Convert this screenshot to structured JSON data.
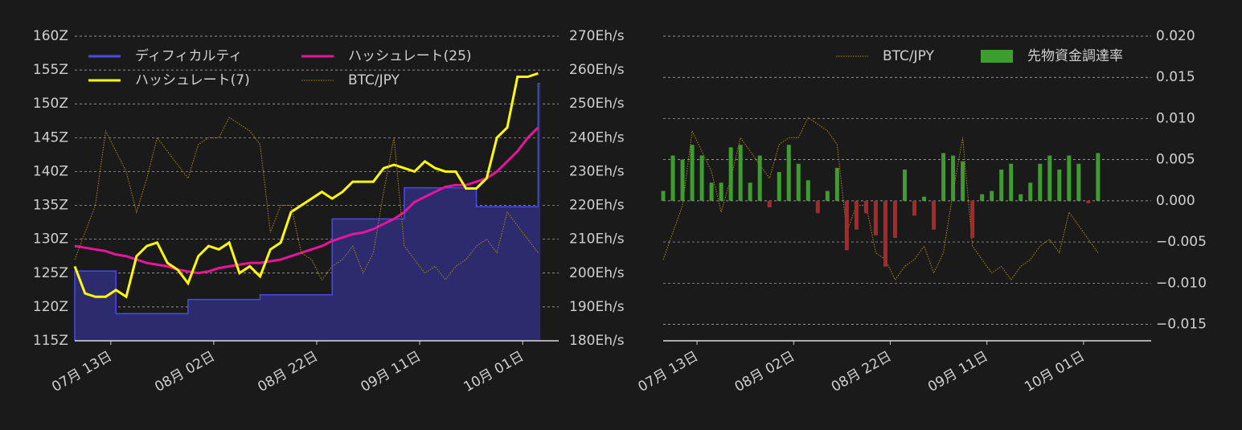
{
  "chart_data": [
    {
      "type": "line",
      "x": [
        "07-06",
        "07-08",
        "07-10",
        "07-12",
        "07-14",
        "07-16",
        "07-18",
        "07-20",
        "07-22",
        "07-24",
        "07-26",
        "07-28",
        "07-30",
        "08-01",
        "08-03",
        "08-05",
        "08-07",
        "08-09",
        "08-11",
        "08-13",
        "08-15",
        "08-17",
        "08-19",
        "08-21",
        "08-23",
        "08-25",
        "08-27",
        "08-29",
        "08-31",
        "09-02",
        "09-04",
        "09-06",
        "09-08",
        "09-10",
        "09-12",
        "09-14",
        "09-16",
        "09-18",
        "09-20",
        "09-22",
        "09-24",
        "09-26",
        "09-28",
        "09-30",
        "10-02",
        "10-04"
      ],
      "xlim": [
        "07-06",
        "10-08"
      ],
      "xticks": [
        {
          "value": "07-13",
          "label": "07月 13日"
        },
        {
          "value": "08-02",
          "label": "08月 02日"
        },
        {
          "value": "08-22",
          "label": "08月 22日"
        },
        {
          "value": "09-11",
          "label": "09月 11日"
        },
        {
          "value": "10-01",
          "label": "10月 01日"
        }
      ],
      "ylim": [
        115,
        160
      ],
      "yticks": [
        {
          "value": 115,
          "label": "115Z"
        },
        {
          "value": 120,
          "label": "120Z"
        },
        {
          "value": 125,
          "label": "125Z"
        },
        {
          "value": 130,
          "label": "130Z"
        },
        {
          "value": 135,
          "label": "135Z"
        },
        {
          "value": 140,
          "label": "140Z"
        },
        {
          "value": 145,
          "label": "145Z"
        },
        {
          "value": 150,
          "label": "150Z"
        },
        {
          "value": 155,
          "label": "155Z"
        },
        {
          "value": 160,
          "label": "160Z"
        }
      ],
      "y2lim": [
        180,
        270
      ],
      "y2ticks": [
        {
          "value": 180,
          "label": "180Eh/s"
        },
        {
          "value": 190,
          "label": "190Eh/s"
        },
        {
          "value": 200,
          "label": "200Eh/s"
        },
        {
          "value": 210,
          "label": "210Eh/s"
        },
        {
          "value": 220,
          "label": "220Eh/s"
        },
        {
          "value": 230,
          "label": "230Eh/s"
        },
        {
          "value": 240,
          "label": "240Eh/s"
        },
        {
          "value": 250,
          "label": "250Eh/s"
        },
        {
          "value": 260,
          "label": "260Eh/s"
        },
        {
          "value": 270,
          "label": "270Eh/s"
        }
      ],
      "grid": true,
      "series": [
        {
          "name": "ディフィカルティ",
          "style": "step-area",
          "color": "#4a4ae6",
          "fill": "#2b2b6e",
          "axis": "y",
          "values": [
            125.3,
            125.3,
            125.3,
            125.3,
            119,
            119,
            119,
            119,
            119,
            119,
            119,
            121.1,
            121.1,
            121.1,
            121.1,
            121.1,
            121.1,
            121.1,
            121.8,
            121.8,
            121.8,
            121.8,
            121.8,
            121.8,
            121.8,
            133,
            133,
            133,
            133,
            133,
            133,
            133,
            137.6,
            137.6,
            137.6,
            137.6,
            137.6,
            137.6,
            137.6,
            134.8,
            134.8,
            134.8,
            134.8,
            134.8,
            134.8,
            153
          ]
        },
        {
          "name": "ハッシュレート(25)",
          "style": "solid",
          "color": "#e8149c",
          "axis": "y2",
          "values": [
            208,
            207.5,
            207,
            206.5,
            205.5,
            205,
            204,
            203,
            202.5,
            202,
            201,
            200.5,
            200,
            200.5,
            201.5,
            202,
            202.5,
            203,
            203,
            203.5,
            204,
            205,
            206,
            207,
            208,
            209.5,
            210.5,
            211.5,
            212,
            213,
            214.5,
            216,
            218,
            221,
            222.5,
            224,
            225.5,
            226,
            226,
            227,
            228,
            230,
            233,
            236,
            240,
            243
          ]
        },
        {
          "name": "ハッシュレート(7)",
          "style": "solid",
          "color": "#ffff00",
          "axis": "y2",
          "values": [
            202,
            194,
            193,
            193,
            195,
            193,
            205,
            208,
            209,
            203,
            201,
            197,
            205,
            208,
            207,
            209,
            200,
            202,
            199,
            207,
            209,
            218,
            220,
            222,
            224,
            222,
            224,
            227,
            227,
            227,
            231,
            232,
            231,
            230,
            233,
            231,
            230,
            230,
            225,
            225,
            228,
            240,
            243,
            258,
            258,
            259
          ]
        },
        {
          "name": "BTC/JPY",
          "style": "dotted",
          "color": "#b8860b",
          "axis": "y",
          "values": [
            127,
            131,
            135,
            146,
            143,
            140,
            134,
            139,
            145,
            143,
            141,
            139,
            144,
            145,
            145,
            148,
            147,
            146,
            144,
            131,
            135,
            135,
            128,
            127,
            124,
            126,
            127,
            129,
            125,
            128,
            137,
            145,
            129,
            127,
            125,
            126,
            124,
            126,
            127,
            129,
            130,
            128,
            134,
            132,
            130,
            128
          ]
        }
      ],
      "legend_order": [
        0,
        1,
        2,
        3
      ]
    },
    {
      "type": "bar",
      "x": [
        "07-06",
        "07-08",
        "07-10",
        "07-12",
        "07-14",
        "07-16",
        "07-18",
        "07-20",
        "07-22",
        "07-24",
        "07-26",
        "07-28",
        "07-30",
        "08-01",
        "08-03",
        "08-05",
        "08-07",
        "08-09",
        "08-11",
        "08-13",
        "08-15",
        "08-17",
        "08-19",
        "08-21",
        "08-23",
        "08-25",
        "08-27",
        "08-29",
        "08-31",
        "09-02",
        "09-04",
        "09-06",
        "09-08",
        "09-10",
        "09-12",
        "09-14",
        "09-16",
        "09-18",
        "09-20",
        "09-22",
        "09-24",
        "09-26",
        "09-28",
        "09-30",
        "10-02",
        "10-04"
      ],
      "xlim": [
        "07-06",
        "10-15"
      ],
      "xticks": [
        {
          "value": "07-13",
          "label": "07月 13日"
        },
        {
          "value": "08-02",
          "label": "08月 02日"
        },
        {
          "value": "08-22",
          "label": "08月 22日"
        },
        {
          "value": "09-11",
          "label": "09月 11日"
        },
        {
          "value": "10-01",
          "label": "10月 01日"
        }
      ],
      "ylim": [
        -0.017,
        0.02
      ],
      "yticks": [
        {
          "value": -0.015,
          "label": "−0.015"
        },
        {
          "value": -0.01,
          "label": "−0.010"
        },
        {
          "value": -0.005,
          "label": "−0.005"
        },
        {
          "value": 0,
          "label": "0.000"
        },
        {
          "value": 0.005,
          "label": "0.005"
        },
        {
          "value": 0.01,
          "label": "0.010"
        },
        {
          "value": 0.015,
          "label": "0.015"
        },
        {
          "value": 0.02,
          "label": "0.020"
        }
      ],
      "y3lim": [
        115,
        160
      ],
      "grid": true,
      "series": [
        {
          "name": "BTC/JPY",
          "style": "dotted",
          "color": "#b8860b",
          "axis": "y3",
          "values": [
            127,
            131,
            135,
            146,
            143,
            140,
            134,
            139,
            145,
            143,
            141,
            139,
            144,
            145,
            145,
            148,
            147,
            146,
            144,
            131,
            135,
            135,
            128,
            127,
            124,
            126,
            127,
            129,
            125,
            128,
            137,
            145,
            129,
            127,
            125,
            126,
            124,
            126,
            127,
            129,
            130,
            128,
            134,
            132,
            130,
            128
          ]
        },
        {
          "name": "先物資金調達率",
          "style": "bar",
          "color": "#3c9e2c",
          "negative_color": "#a8282e",
          "axis": "y",
          "values": [
            0.0012,
            0.0055,
            0.005,
            0.0068,
            0.0055,
            0.0022,
            0.0022,
            0.0065,
            0.0068,
            0.0022,
            0.0055,
            -0.0008,
            0.0035,
            0.0068,
            0.0045,
            0.0025,
            -0.0015,
            0.0012,
            0.004,
            -0.006,
            -0.0035,
            -0.0015,
            -0.0042,
            -0.008,
            -0.0045,
            0.0038,
            -0.0018,
            0.0005,
            -0.0035,
            0.0058,
            0.0055,
            0.0048,
            -0.0045,
            0.0008,
            0.0012,
            0.0038,
            0.0045,
            0.0008,
            0.0022,
            0.0045,
            0.0055,
            0.0038,
            0.0055,
            0.0045,
            -0.0003,
            0.0058
          ]
        }
      ],
      "legend_order": [
        0,
        1
      ]
    }
  ]
}
